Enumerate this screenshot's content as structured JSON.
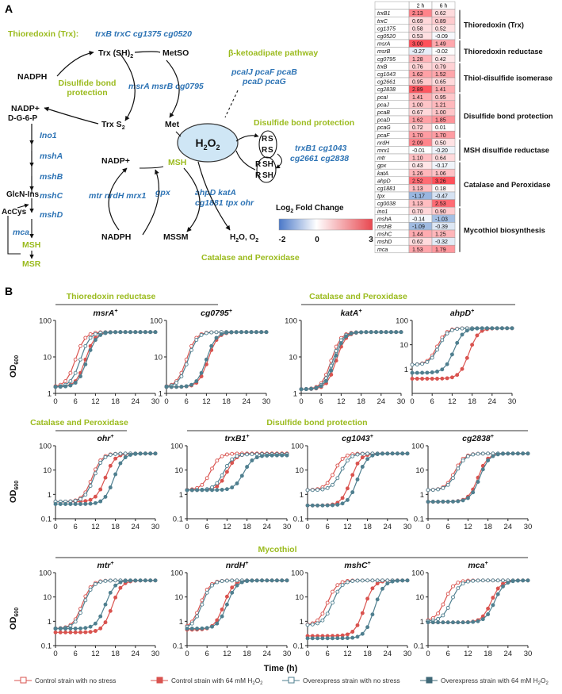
{
  "panel_a": {
    "label": "A",
    "pathway": {
      "trx_title": "Thioredoxin (Trx):",
      "trx_genes": "trxB trxC cg1375 cg0520",
      "nadph1": "NADPH",
      "trx_sh2": "Trx (SH)",
      "trx_sh2_sub": "2",
      "metso": "MetSO",
      "dsb_protect1": "Disulfide bond",
      "dsb_protect2": "protection",
      "msr_genes": "msrA msrB cg0795",
      "nadp1": "NADP+",
      "trx_s2": "Trx S",
      "trx_s2_sub": "2",
      "met": "Met",
      "beta_title": "β-ketoadipate pathway",
      "pca_genes1": "pcaIJ pcaF pcaB",
      "pca_genes2": "pcaD pcaG",
      "h2o2": "H",
      "h2o2_2": "2",
      "h2o2_o": "O",
      "h2o2_3": "2",
      "dsb_title": "Disulfide bond protection",
      "dsb_genes1": "trxB1 cg1043",
      "dsb_genes2": "cg2661 cg2838",
      "dg6p": "D-G-6-P",
      "ino1": "Ino1",
      "mshA": "mshA",
      "mshB": "mshB",
      "mshC": "mshC",
      "mshD": "mshD",
      "glcn": "GlcN-Ins",
      "accys": "AcCys",
      "mca": "mca",
      "msh": "MSH",
      "msr": "MSR",
      "nadp2": "NADP+",
      "msh_center": "MSH",
      "mtr_genes": "mtr nrdH mrx1",
      "gpx": "gpx",
      "cat_genes1": "ahpD katA",
      "cat_genes2": "cg1881 tpx ohr",
      "nadph2": "NADPH",
      "mssm": "MSSM",
      "h2o_o2": "H",
      "cat_title": "Catalase and Peroxidase",
      "rs1": "R",
      "rs2": "S",
      "rsh1": "R",
      "rsh2": "SH"
    },
    "legend": {
      "title": "Log",
      "title_sub": "2",
      "title_rest": " Fold Change",
      "min": "-2",
      "mid": "0",
      "max": "3"
    },
    "heatmap": {
      "col_headers": [
        "2 h",
        "6 h"
      ],
      "rows": [
        {
          "gene": "trxB1",
          "v2": "2.13",
          "v6": "0.62"
        },
        {
          "gene": "trxC",
          "v2": "0.69",
          "v6": "0.89"
        },
        {
          "gene": "cg1375",
          "v2": "0.58",
          "v6": "0.52"
        },
        {
          "gene": "cg0520",
          "v2": "0.53",
          "v6": "-0.09"
        },
        {
          "gene": "msrA",
          "v2": "3.00",
          "v6": "1.49"
        },
        {
          "gene": "msrB",
          "v2": "-0.27",
          "v6": "-0.02"
        },
        {
          "gene": "cg0795",
          "v2": "1.28",
          "v6": "0.42"
        },
        {
          "gene": "trxB",
          "v2": "0.76",
          "v6": "0.79"
        },
        {
          "gene": "cg1043",
          "v2": "1.62",
          "v6": "1.52"
        },
        {
          "gene": "cg2661",
          "v2": "0.95",
          "v6": "0.65"
        },
        {
          "gene": "cg2838",
          "v2": "2.89",
          "v6": "1.41"
        },
        {
          "gene": "pcaI",
          "v2": "1.41",
          "v6": "0.95"
        },
        {
          "gene": "pcaJ",
          "v2": "1.00",
          "v6": "1.21"
        },
        {
          "gene": "pcaB",
          "v2": "0.67",
          "v6": "1.00"
        },
        {
          "gene": "pcaD",
          "v2": "1.62",
          "v6": "1.85"
        },
        {
          "gene": "pcaG",
          "v2": "0.72",
          "v6": "0.01"
        },
        {
          "gene": "pcaF",
          "v2": "1.70",
          "v6": "1.70"
        },
        {
          "gene": "nrdH",
          "v2": "2.09",
          "v6": "0.50"
        },
        {
          "gene": "mrx1",
          "v2": "-0.01",
          "v6": "-0.20"
        },
        {
          "gene": "mtr",
          "v2": "1.10",
          "v6": "0.64"
        },
        {
          "gene": "gpx",
          "v2": "0.43",
          "v6": "-0.17"
        },
        {
          "gene": "katA",
          "v2": "1.26",
          "v6": "1.06"
        },
        {
          "gene": "ahpD",
          "v2": "2.52",
          "v6": "3.26"
        },
        {
          "gene": "cg1881",
          "v2": "1.13",
          "v6": "0.18"
        },
        {
          "gene": "tpx",
          "v2": "-1.17",
          "v6": "-0.47"
        },
        {
          "gene": "cg0038",
          "v2": "1.13",
          "v6": "2.53"
        },
        {
          "gene": "ino1",
          "v2": "0.70",
          "v6": "0.90"
        },
        {
          "gene": "mshA",
          "v2": "-0.14",
          "v6": "-1.03"
        },
        {
          "gene": "mshB",
          "v2": "-1.09",
          "v6": "-0.39"
        },
        {
          "gene": "mshC",
          "v2": "1.44",
          "v6": "1.25"
        },
        {
          "gene": "mshD",
          "v2": "0.62",
          "v6": "-0.32"
        },
        {
          "gene": "mca",
          "v2": "1.53",
          "v6": "1.79"
        }
      ],
      "groups": [
        {
          "label": "Thioredoxin (Trx)",
          "start": 0,
          "end": 3
        },
        {
          "label": "Thioredoxin reductase",
          "start": 4,
          "end": 6
        },
        {
          "label": "Thiol-disulfide isomerase",
          "start": 7,
          "end": 10
        },
        {
          "label": "Disulfide bond protection",
          "start": 11,
          "end": 16
        },
        {
          "label": "MSH disulfide reductase",
          "start": 17,
          "end": 19
        },
        {
          "label": "Catalase and Peroxidase",
          "start": 20,
          "end": 25
        },
        {
          "label": "Mycothiol biosynthesis",
          "start": 26,
          "end": 31
        }
      ]
    }
  },
  "panel_b": {
    "label": "B",
    "ylabel": "OD",
    "ylabel_sub": "600",
    "xlabel": "Time (h)",
    "group_titles": [
      {
        "text": "Thioredoxin reductase",
        "row": 0
      },
      {
        "text": "Catalase and Peroxidase",
        "row": 0
      },
      {
        "text": "Catalase and Peroxidase",
        "row": 1
      },
      {
        "text": "Disulfide bond protection",
        "row": 1
      },
      {
        "text": "Mycothiol",
        "row": 2
      }
    ],
    "legend": [
      {
        "label": "Control strain with no stress",
        "color": "#d9534f",
        "filled": false
      },
      {
        "label": "Control strain with 64 mM H",
        "sub": "2",
        "label2": "O",
        "sub2": "2",
        "color": "#d9534f",
        "filled": true
      },
      {
        "label": "Overexpress strain with no stress",
        "color": "#4f7f8f",
        "filled": false
      },
      {
        "label": "Overexpress strain with 64 mM H",
        "sub": "2",
        "label2": "O",
        "sub2": "2",
        "color": "#3f6877",
        "filled": true
      }
    ],
    "colors": {
      "control": "#d9534f",
      "overexpress": "#4f7f8f",
      "green": "#9bbb1e",
      "blue": "#2e74b5"
    }
  },
  "chart_data": [
    {
      "type": "line",
      "title": "msrA",
      "ylim": [
        1,
        100
      ],
      "xlim": [
        0,
        30
      ],
      "log_y": true,
      "x_ticks": [
        0,
        6,
        12,
        18,
        24,
        30
      ],
      "y_ticks": [
        1,
        10,
        100
      ],
      "series": [
        {
          "name": "Control strain with no stress",
          "midpoint": 6,
          "start": 1.5,
          "plateau": 48
        },
        {
          "name": "Control strain with 64 mM H2O2",
          "midpoint": 9,
          "start": 1.5,
          "plateau": 48
        },
        {
          "name": "Overexpress strain with no stress",
          "midpoint": 7.5,
          "start": 1.5,
          "plateau": 48
        },
        {
          "name": "Overexpress strain with 64 mM H2O2",
          "midpoint": 9.5,
          "start": 1.5,
          "plateau": 48
        }
      ]
    },
    {
      "type": "line",
      "title": "cg0795",
      "ylim": [
        1,
        100
      ],
      "xlim": [
        0,
        30
      ],
      "log_y": true,
      "x_ticks": [
        0,
        6,
        12,
        18,
        24,
        30
      ],
      "y_ticks": [
        1,
        10,
        100
      ],
      "series": [
        {
          "name": "Control strain with no stress",
          "midpoint": 6,
          "start": 1.5,
          "plateau": 48
        },
        {
          "name": "Control strain with 64 mM H2O2",
          "midpoint": 12.5,
          "start": 1.5,
          "plateau": 48
        },
        {
          "name": "Overexpress strain with no stress",
          "midpoint": 6.5,
          "start": 1.5,
          "plateau": 48
        },
        {
          "name": "Overexpress strain with 64 mM H2O2",
          "midpoint": 12,
          "start": 1.5,
          "plateau": 48
        }
      ]
    },
    {
      "type": "line",
      "title": "katA",
      "ylim": [
        1,
        100
      ],
      "xlim": [
        0,
        30
      ],
      "log_y": true,
      "x_ticks": [
        0,
        6,
        12,
        18,
        24,
        30
      ],
      "y_ticks": [
        1,
        10,
        100
      ],
      "series": [
        {
          "name": "Control strain with no stress",
          "midpoint": 9,
          "start": 1.3,
          "plateau": 48
        },
        {
          "name": "Control strain with 64 mM H2O2",
          "midpoint": 10.5,
          "start": 1.3,
          "plateau": 48
        },
        {
          "name": "Overexpress strain with no stress",
          "midpoint": 9.5,
          "start": 1.3,
          "plateau": 48
        },
        {
          "name": "Overexpress strain with 64 mM H2O2",
          "midpoint": 10,
          "start": 1.3,
          "plateau": 48
        }
      ]
    },
    {
      "type": "line",
      "title": "ahpD",
      "ylim": [
        0.1,
        100
      ],
      "xlim": [
        0,
        30
      ],
      "log_y": true,
      "x_ticks": [
        0,
        6,
        12,
        18,
        24,
        30
      ],
      "y_ticks": [
        1,
        10,
        100
      ],
      "series": [
        {
          "name": "Control strain with no stress",
          "midpoint": 7.5,
          "start": 1.5,
          "plateau": 48
        },
        {
          "name": "Control strain with 64 mM H2O2",
          "midpoint": 17,
          "start": 0.4,
          "plateau": 48
        },
        {
          "name": "Overexpress strain with no stress",
          "midpoint": 8,
          "start": 1.5,
          "plateau": 48
        },
        {
          "name": "Overexpress strain with 64 mM H2O2",
          "midpoint": 12.5,
          "start": 0.7,
          "plateau": 48
        }
      ]
    },
    {
      "type": "line",
      "title": "ohr",
      "ylim": [
        0.1,
        100
      ],
      "xlim": [
        0,
        30
      ],
      "log_y": true,
      "x_ticks": [
        0,
        6,
        12,
        18,
        24,
        30
      ],
      "y_ticks": [
        0.1,
        1,
        10,
        100
      ],
      "series": [
        {
          "name": "Control strain with no stress",
          "midpoint": 11,
          "start": 0.5,
          "plateau": 48
        },
        {
          "name": "Control strain with 64 mM H2O2",
          "midpoint": 15,
          "start": 0.5,
          "plateau": 48
        },
        {
          "name": "Overexpress strain with no stress",
          "midpoint": 11.5,
          "start": 0.5,
          "plateau": 48
        },
        {
          "name": "Overexpress strain with 64 mM H2O2",
          "midpoint": 17.5,
          "start": 0.4,
          "plateau": 48
        }
      ]
    },
    {
      "type": "line",
      "title": "trxB1",
      "ylim": [
        0.1,
        100
      ],
      "xlim": [
        0,
        30
      ],
      "log_y": true,
      "x_ticks": [
        0,
        6,
        12,
        18,
        24,
        30
      ],
      "y_ticks": [
        0.1,
        1,
        10,
        100
      ],
      "series": [
        {
          "name": "Control strain with no stress",
          "midpoint": 7,
          "start": 1.5,
          "plateau": 48
        },
        {
          "name": "Control strain with 64 mM H2O2",
          "midpoint": 12,
          "start": 1.5,
          "plateau": 48
        },
        {
          "name": "Overexpress strain with no stress",
          "midpoint": 11,
          "start": 1.5,
          "plateau": 45
        },
        {
          "name": "Overexpress strain with 64 mM H2O2",
          "midpoint": 17,
          "start": 1.5,
          "plateau": 40
        }
      ]
    },
    {
      "type": "line",
      "title": "cg1043",
      "ylim": [
        0.1,
        100
      ],
      "xlim": [
        0,
        30
      ],
      "log_y": true,
      "x_ticks": [
        0,
        6,
        12,
        18,
        24,
        30
      ],
      "y_ticks": [
        0.1,
        1,
        10,
        100
      ],
      "series": [
        {
          "name": "Control strain with no stress",
          "midpoint": 8,
          "start": 1.5,
          "plateau": 48
        },
        {
          "name": "Control strain with 64 mM H2O2",
          "midpoint": 13,
          "start": 0.35,
          "plateau": 48
        },
        {
          "name": "Overexpress strain with no stress",
          "midpoint": 10,
          "start": 1.5,
          "plateau": 48
        },
        {
          "name": "Overexpress strain with 64 mM H2O2",
          "midpoint": 15,
          "start": 0.35,
          "plateau": 48
        }
      ]
    },
    {
      "type": "line",
      "title": "cg2838",
      "ylim": [
        0.1,
        100
      ],
      "xlim": [
        0,
        30
      ],
      "log_y": true,
      "x_ticks": [
        0,
        6,
        12,
        18,
        24,
        30
      ],
      "y_ticks": [
        0.1,
        1,
        10,
        100
      ],
      "series": [
        {
          "name": "Control strain with no stress",
          "midpoint": 8,
          "start": 1.5,
          "plateau": 48
        },
        {
          "name": "Control strain with 64 mM H2O2",
          "midpoint": 15,
          "start": 0.5,
          "plateau": 48
        },
        {
          "name": "Overexpress strain with no stress",
          "midpoint": 8.5,
          "start": 1.5,
          "plateau": 48
        },
        {
          "name": "Overexpress strain with 64 mM H2O2",
          "midpoint": 15.5,
          "start": 0.5,
          "plateau": 48
        }
      ]
    },
    {
      "type": "line",
      "title": "mtr",
      "ylim": [
        0.1,
        100
      ],
      "xlim": [
        0,
        30
      ],
      "log_y": true,
      "x_ticks": [
        0,
        6,
        12,
        18,
        24,
        30
      ],
      "y_ticks": [
        0.1,
        1,
        10,
        100
      ],
      "series": [
        {
          "name": "Control strain with no stress",
          "midpoint": 8,
          "start": 0.5,
          "plateau": 48
        },
        {
          "name": "Control strain with 64 mM H2O2",
          "midpoint": 17,
          "start": 0.35,
          "plateau": 48
        },
        {
          "name": "Overexpress strain with no stress",
          "midpoint": 8.5,
          "start": 0.5,
          "plateau": 48
        },
        {
          "name": "Overexpress strain with 64 mM H2O2",
          "midpoint": 15,
          "start": 0.5,
          "plateau": 48
        }
      ]
    },
    {
      "type": "line",
      "title": "nrdH",
      "ylim": [
        0.1,
        100
      ],
      "xlim": [
        0,
        30
      ],
      "log_y": true,
      "x_ticks": [
        0,
        6,
        12,
        18,
        24,
        30
      ],
      "y_ticks": [
        0.1,
        1,
        10,
        100
      ],
      "series": [
        {
          "name": "Control strain with no stress",
          "midpoint": 4,
          "start": 0.5,
          "plateau": 48
        },
        {
          "name": "Control strain with 64 mM H2O2",
          "midpoint": 11,
          "start": 0.45,
          "plateau": 48
        },
        {
          "name": "Overexpress strain with no stress",
          "midpoint": 4.5,
          "start": 0.5,
          "plateau": 48
        },
        {
          "name": "Overexpress strain with 64 mM H2O2",
          "midpoint": 12,
          "start": 0.5,
          "plateau": 48
        }
      ]
    },
    {
      "type": "line",
      "title": "mshC",
      "ylim": [
        0.1,
        100
      ],
      "xlim": [
        0,
        30
      ],
      "log_y": true,
      "x_ticks": [
        0,
        6,
        12,
        18,
        24,
        30
      ],
      "y_ticks": [
        0.1,
        1,
        10,
        100
      ],
      "series": [
        {
          "name": "Control strain with no stress",
          "midpoint": 6,
          "start": 0.7,
          "plateau": 48
        },
        {
          "name": "Control strain with 64 mM H2O2",
          "midpoint": 17,
          "start": 0.25,
          "plateau": 48
        },
        {
          "name": "Overexpress strain with no stress",
          "midpoint": 7.5,
          "start": 0.7,
          "plateau": 48
        },
        {
          "name": "Overexpress strain with 64 mM H2O2",
          "midpoint": 20,
          "start": 0.2,
          "plateau": 48
        }
      ]
    },
    {
      "type": "line",
      "title": "mca",
      "ylim": [
        0.1,
        100
      ],
      "xlim": [
        0,
        30
      ],
      "log_y": true,
      "x_ticks": [
        0,
        6,
        12,
        18,
        24,
        30
      ],
      "y_ticks": [
        0.1,
        1,
        10,
        100
      ],
      "series": [
        {
          "name": "Control strain with no stress",
          "midpoint": 5,
          "start": 1,
          "plateau": 48
        },
        {
          "name": "Control strain with 64 mM H2O2",
          "midpoint": 19,
          "start": 0.9,
          "plateau": 48
        },
        {
          "name": "Overexpress strain with no stress",
          "midpoint": 7,
          "start": 1,
          "plateau": 48
        },
        {
          "name": "Overexpress strain with 64 mM H2O2",
          "midpoint": 20,
          "start": 0.9,
          "plateau": 48
        }
      ]
    }
  ]
}
